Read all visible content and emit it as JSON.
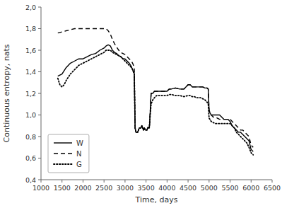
{
  "chart_data": {
    "type": "line",
    "xlabel": "Time, days",
    "ylabel": "Continuous entropy, nats",
    "xlim": [
      1000,
      6500
    ],
    "ylim": [
      0.4,
      2.0
    ],
    "xticks": [
      1000,
      1500,
      2000,
      2500,
      3000,
      3500,
      4000,
      4500,
      5000,
      5500,
      6000,
      6500
    ],
    "yticks": [
      {
        "value": 0.4,
        "label": "0,4"
      },
      {
        "value": 0.6,
        "label": "0,6"
      },
      {
        "value": 0.8,
        "label": "0,8"
      },
      {
        "value": 1.0,
        "label": "1,0"
      },
      {
        "value": 1.2,
        "label": "1,2"
      },
      {
        "value": 1.4,
        "label": "1,4"
      },
      {
        "value": 1.6,
        "label": "1,6"
      },
      {
        "value": 1.8,
        "label": "1,8"
      },
      {
        "value": 2.0,
        "label": "2,0"
      }
    ],
    "color": "black",
    "legend": "lower left",
    "grid": false,
    "series": [
      {
        "name": "W",
        "line_style": "solid",
        "x": [
          1400,
          1500,
          1600,
          1700,
          1800,
          1900,
          2000,
          2100,
          2200,
          2300,
          2400,
          2500,
          2550,
          2600,
          2650,
          2700,
          2750,
          2800,
          2850,
          2900,
          2950,
          3000,
          3050,
          3100,
          3150,
          3180,
          3200,
          3220,
          3240,
          3260,
          3300,
          3320,
          3340,
          3380,
          3400,
          3420,
          3440,
          3460,
          3480,
          3500,
          3520,
          3540,
          3580,
          3620,
          3660,
          3700,
          3750,
          3800,
          3850,
          3900,
          3950,
          4000,
          4050,
          4100,
          4200,
          4300,
          4400,
          4500,
          4550,
          4600,
          4650,
          4700,
          4750,
          4800,
          4850,
          4900,
          4950,
          4980,
          5000,
          5020,
          5050,
          5100,
          5150,
          5200,
          5250,
          5300,
          5350,
          5400,
          5450,
          5500,
          5550,
          5600,
          5650,
          5700,
          5750,
          5800,
          5850,
          5900,
          5950,
          6000,
          6050
        ],
        "values": [
          1.36,
          1.38,
          1.44,
          1.48,
          1.5,
          1.52,
          1.52,
          1.54,
          1.56,
          1.57,
          1.6,
          1.62,
          1.64,
          1.65,
          1.64,
          1.6,
          1.58,
          1.57,
          1.55,
          1.54,
          1.52,
          1.52,
          1.5,
          1.48,
          1.45,
          1.42,
          1.4,
          1.38,
          0.88,
          0.84,
          0.84,
          0.86,
          0.88,
          0.88,
          0.9,
          0.88,
          0.86,
          0.88,
          0.86,
          0.86,
          0.86,
          0.88,
          0.88,
          1.2,
          1.2,
          1.22,
          1.22,
          1.22,
          1.22,
          1.22,
          1.22,
          1.22,
          1.24,
          1.24,
          1.25,
          1.24,
          1.24,
          1.28,
          1.28,
          1.26,
          1.26,
          1.26,
          1.26,
          1.26,
          1.26,
          1.25,
          1.25,
          1.24,
          1.05,
          1.02,
          1.0,
          1.0,
          1.0,
          1.0,
          1.0,
          0.98,
          0.96,
          0.96,
          0.96,
          0.94,
          0.9,
          0.88,
          0.86,
          0.84,
          0.84,
          0.82,
          0.8,
          0.78,
          0.76,
          0.68,
          0.66
        ]
      },
      {
        "name": "N",
        "line_style": "dashed",
        "x": [
          1400,
          1500,
          1600,
          1700,
          1800,
          1900,
          2000,
          2100,
          2200,
          2300,
          2400,
          2500,
          2550,
          2600,
          2650,
          2700,
          2750,
          2800,
          2850,
          2900,
          2950,
          3000,
          3050,
          3100,
          3150,
          3180,
          3200,
          3220,
          3240,
          3260,
          3300,
          3320,
          3340,
          3380,
          3400,
          3420,
          3440,
          3460,
          3480,
          3500,
          3520,
          3540,
          3580,
          3620,
          3660,
          3700,
          3750,
          3800,
          3850,
          3900,
          3950,
          4000,
          4050,
          4100,
          4200,
          4300,
          4400,
          4500,
          4550,
          4600,
          4650,
          4700,
          4750,
          4800,
          4850,
          4900,
          4950,
          4980,
          5000,
          5020,
          5050,
          5100,
          5150,
          5200,
          5250,
          5300,
          5350,
          5400,
          5450,
          5500,
          5550,
          5600,
          5650,
          5700,
          5750,
          5800,
          5850,
          5900,
          5950,
          6000,
          6050
        ],
        "values": [
          1.76,
          1.77,
          1.78,
          1.79,
          1.8,
          1.8,
          1.8,
          1.8,
          1.8,
          1.8,
          1.8,
          1.8,
          1.8,
          1.78,
          1.75,
          1.7,
          1.66,
          1.63,
          1.6,
          1.58,
          1.57,
          1.56,
          1.54,
          1.52,
          1.5,
          1.48,
          1.46,
          1.44,
          0.88,
          0.84,
          0.84,
          0.86,
          0.88,
          0.88,
          0.9,
          0.88,
          0.86,
          0.88,
          0.86,
          0.86,
          0.86,
          0.88,
          0.88,
          1.2,
          1.2,
          1.22,
          1.22,
          1.22,
          1.22,
          1.22,
          1.22,
          1.22,
          1.24,
          1.24,
          1.25,
          1.24,
          1.24,
          1.28,
          1.28,
          1.26,
          1.26,
          1.26,
          1.26,
          1.26,
          1.26,
          1.25,
          1.25,
          1.24,
          1.04,
          1.02,
          1.0,
          0.98,
          0.98,
          0.97,
          0.96,
          0.96,
          0.96,
          0.96,
          0.96,
          0.96,
          0.94,
          0.92,
          0.9,
          0.88,
          0.86,
          0.86,
          0.84,
          0.82,
          0.8,
          0.72,
          0.7
        ]
      },
      {
        "name": "G",
        "line_style": "dotted",
        "x": [
          1400,
          1450,
          1500,
          1550,
          1600,
          1700,
          1800,
          1900,
          2000,
          2100,
          2200,
          2300,
          2400,
          2500,
          2550,
          2600,
          2650,
          2700,
          2750,
          2800,
          2850,
          2900,
          2950,
          3000,
          3050,
          3100,
          3150,
          3180,
          3200,
          3220,
          3240,
          3260,
          3300,
          3320,
          3340,
          3380,
          3400,
          3420,
          3440,
          3460,
          3480,
          3500,
          3520,
          3540,
          3580,
          3620,
          3660,
          3700,
          3750,
          3800,
          3850,
          3900,
          3950,
          4000,
          4050,
          4100,
          4200,
          4300,
          4400,
          4500,
          4550,
          4600,
          4650,
          4700,
          4750,
          4800,
          4850,
          4900,
          4950,
          4980,
          5000,
          5020,
          5050,
          5100,
          5150,
          5200,
          5250,
          5300,
          5350,
          5400,
          5450,
          5500,
          5550,
          5600,
          5650,
          5700,
          5750,
          5800,
          5850,
          5900,
          5950,
          6000,
          6050
        ],
        "values": [
          1.34,
          1.28,
          1.26,
          1.28,
          1.32,
          1.38,
          1.42,
          1.46,
          1.48,
          1.5,
          1.52,
          1.54,
          1.56,
          1.58,
          1.6,
          1.6,
          1.6,
          1.58,
          1.57,
          1.56,
          1.55,
          1.54,
          1.52,
          1.5,
          1.48,
          1.46,
          1.44,
          1.42,
          1.4,
          1.38,
          0.88,
          0.84,
          0.84,
          0.86,
          0.88,
          0.88,
          0.9,
          0.88,
          0.86,
          0.88,
          0.86,
          0.86,
          0.86,
          0.88,
          0.9,
          1.1,
          1.14,
          1.16,
          1.18,
          1.18,
          1.18,
          1.18,
          1.18,
          1.18,
          1.19,
          1.19,
          1.18,
          1.18,
          1.17,
          1.18,
          1.18,
          1.17,
          1.17,
          1.16,
          1.16,
          1.16,
          1.15,
          1.14,
          1.12,
          1.1,
          0.97,
          0.96,
          0.94,
          0.93,
          0.92,
          0.92,
          0.92,
          0.92,
          0.92,
          0.92,
          0.92,
          0.92,
          0.9,
          0.88,
          0.84,
          0.82,
          0.8,
          0.78,
          0.76,
          0.74,
          0.7,
          0.65,
          0.63
        ]
      }
    ]
  }
}
